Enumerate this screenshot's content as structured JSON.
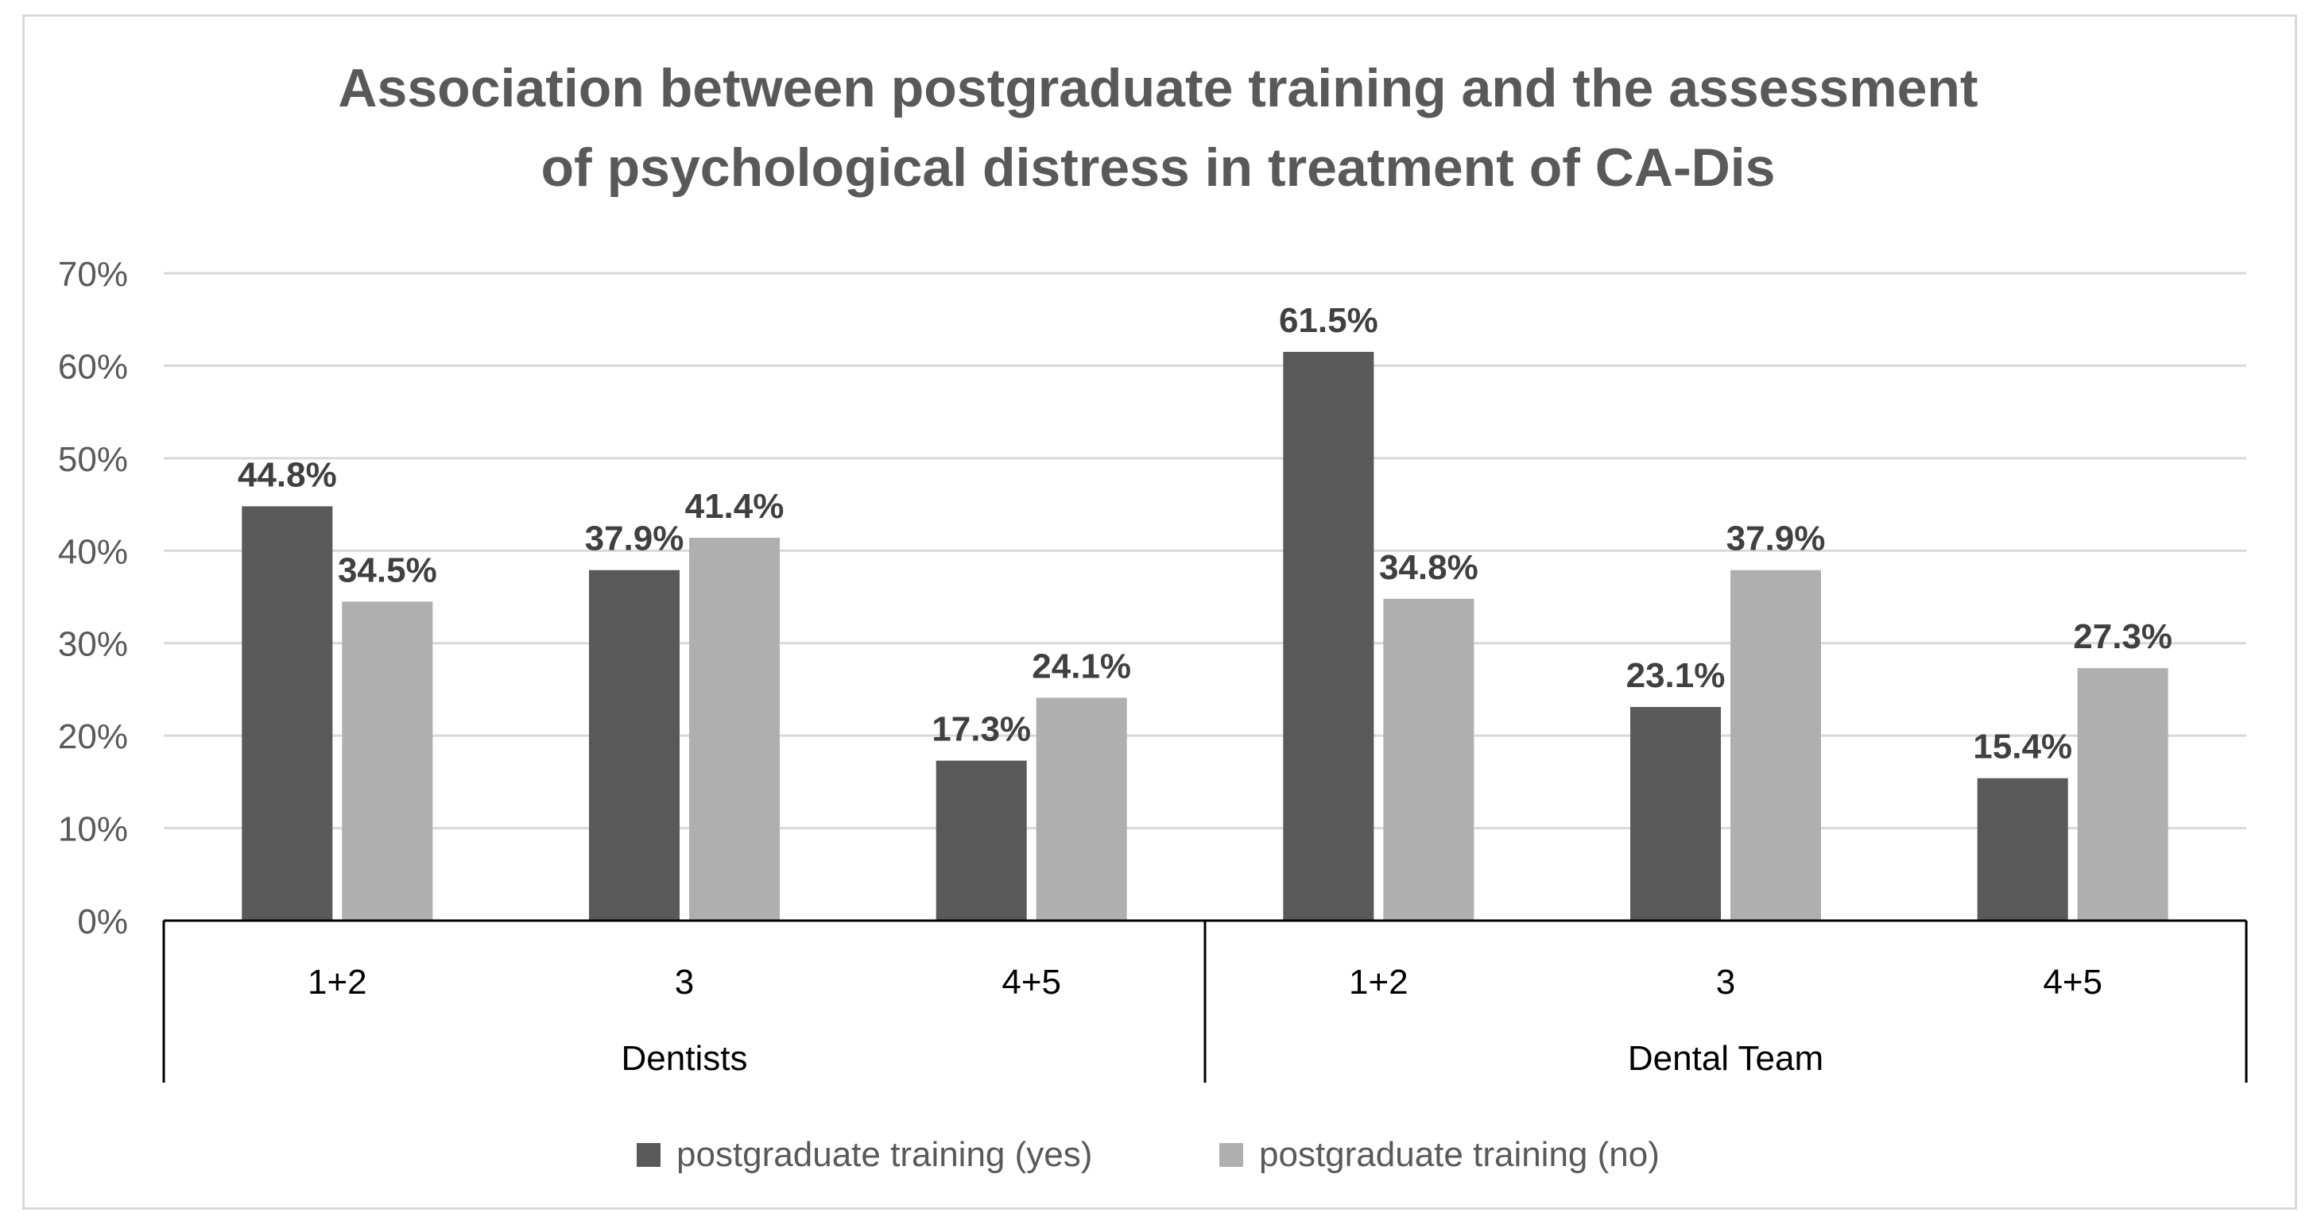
{
  "chart_data": {
    "type": "bar",
    "title_lines": [
      "Association between postgraduate training and the assessment",
      "of psychological distress in treatment of CA-Dis"
    ],
    "groups": [
      {
        "name": "Dentists",
        "categories": [
          "1+2",
          "3",
          "4+5"
        ]
      },
      {
        "name": "Dental Team",
        "categories": [
          "1+2",
          "3",
          "4+5"
        ]
      }
    ],
    "series": [
      {
        "name": "postgraduate training (yes)",
        "color": "#595959",
        "values": [
          44.8,
          37.9,
          17.3,
          61.5,
          23.1,
          15.4
        ],
        "labels": [
          "44.8%",
          "37.9%",
          "17.3%",
          "61.5%",
          "23.1%",
          "15.4%"
        ]
      },
      {
        "name": "postgraduate training (no)",
        "color": "#afafaf",
        "values": [
          34.5,
          41.4,
          24.1,
          34.8,
          37.9,
          27.3
        ],
        "labels": [
          "34.5%",
          "41.4%",
          "24.1%",
          "34.8%",
          "37.9%",
          "27.3%"
        ]
      }
    ],
    "y_ticks": [
      "0%",
      "10%",
      "20%",
      "30%",
      "40%",
      "50%",
      "60%",
      "70%"
    ],
    "ylim": [
      0,
      70
    ],
    "grid": true,
    "legend_position": "bottom"
  }
}
